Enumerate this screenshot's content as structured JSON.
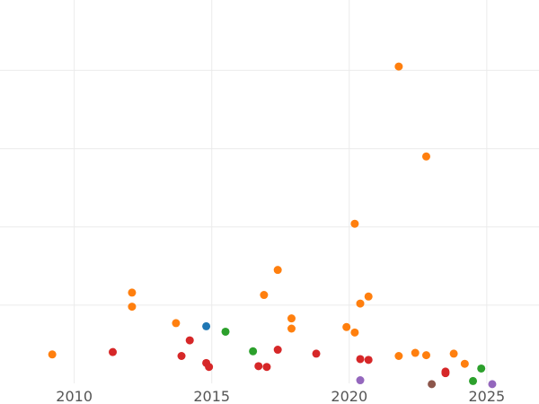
{
  "chart_data": {
    "type": "scatter",
    "title": "",
    "xlabel": "",
    "ylabel": "",
    "xlim": [
      2007.3,
      2026.9
    ],
    "ylim": [
      0,
      4.9
    ],
    "x_ticks": [
      {
        "value": 2010,
        "label": "2010"
      },
      {
        "value": 2015,
        "label": "2015"
      },
      {
        "value": 2020,
        "label": "2020"
      },
      {
        "value": 2025,
        "label": "2025"
      }
    ],
    "y_ticks": [
      1,
      2,
      3,
      4
    ],
    "y_tick_labels_visible": false,
    "grid": true,
    "series": [
      {
        "color": "#ff7f0e",
        "points": [
          [
            2009.2,
            0.37
          ],
          [
            2012.1,
            1.16
          ],
          [
            2012.1,
            0.98
          ],
          [
            2013.7,
            0.77
          ],
          [
            2016.9,
            1.13
          ],
          [
            2017.4,
            1.45
          ],
          [
            2017.9,
            0.83
          ],
          [
            2017.9,
            0.7
          ],
          [
            2019.9,
            0.72
          ],
          [
            2020.2,
            2.04
          ],
          [
            2020.2,
            0.65
          ],
          [
            2020.4,
            1.02
          ],
          [
            2020.7,
            1.11
          ],
          [
            2021.8,
            0.35
          ],
          [
            2021.8,
            4.05
          ],
          [
            2022.4,
            0.39
          ],
          [
            2022.8,
            0.36
          ],
          [
            2022.8,
            2.9
          ],
          [
            2023.8,
            0.38
          ],
          [
            2024.2,
            0.25
          ]
        ]
      },
      {
        "color": "#d62728",
        "points": [
          [
            2011.4,
            0.4
          ],
          [
            2013.9,
            0.35
          ],
          [
            2014.2,
            0.55
          ],
          [
            2014.8,
            0.26
          ],
          [
            2014.9,
            0.21
          ],
          [
            2016.7,
            0.22
          ],
          [
            2017.0,
            0.21
          ],
          [
            2017.4,
            0.43
          ],
          [
            2018.8,
            0.38
          ],
          [
            2020.4,
            0.31
          ],
          [
            2020.7,
            0.3
          ],
          [
            2023.5,
            0.15
          ],
          [
            2023.5,
            0.13
          ]
        ]
      },
      {
        "color": "#2ca02c",
        "points": [
          [
            2015.5,
            0.66
          ],
          [
            2016.5,
            0.41
          ],
          [
            2024.5,
            0.03
          ],
          [
            2024.8,
            0.19
          ]
        ]
      },
      {
        "color": "#1f77b4",
        "points": [
          [
            2014.8,
            0.73
          ]
        ]
      },
      {
        "color": "#9467bd",
        "points": [
          [
            2020.4,
            0.04
          ],
          [
            2025.2,
            -0.01
          ]
        ]
      },
      {
        "color": "#8c564b",
        "points": [
          [
            2023.0,
            -0.01
          ]
        ]
      }
    ]
  }
}
